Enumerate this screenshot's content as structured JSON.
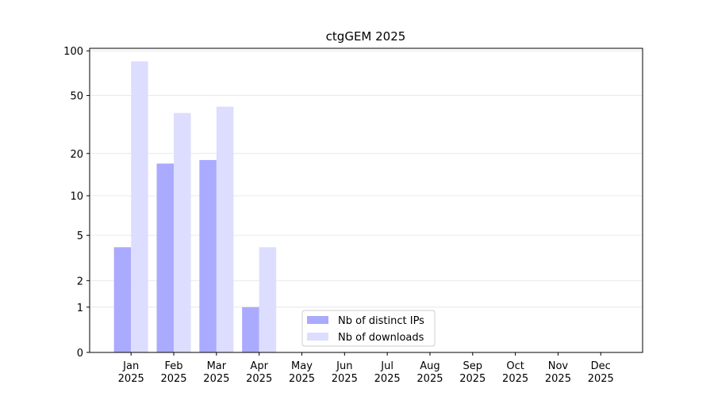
{
  "chart_data": {
    "type": "bar",
    "title": "ctgGEM 2025",
    "categories": [
      "Jan 2025",
      "Feb 2025",
      "Mar 2025",
      "Apr 2025",
      "May 2025",
      "Jun 2025",
      "Jul 2025",
      "Aug 2025",
      "Sep 2025",
      "Oct 2025",
      "Nov 2025",
      "Dec 2025"
    ],
    "series": [
      {
        "name": "Nb of distinct IPs",
        "color": "#aaaaff",
        "values": [
          4,
          17,
          18,
          1,
          0,
          0,
          0,
          0,
          0,
          0,
          0,
          0
        ]
      },
      {
        "name": "Nb of downloads",
        "color": "#ddddff",
        "values": [
          85,
          38,
          42,
          4,
          0,
          0,
          0,
          0,
          0,
          0,
          0,
          0
        ]
      }
    ],
    "y_scale": "log1p",
    "ylim": [
      0,
      104
    ],
    "yticks": [
      0,
      1,
      2,
      5,
      10,
      20,
      50,
      100
    ],
    "grid": true,
    "legend": "lower center"
  }
}
